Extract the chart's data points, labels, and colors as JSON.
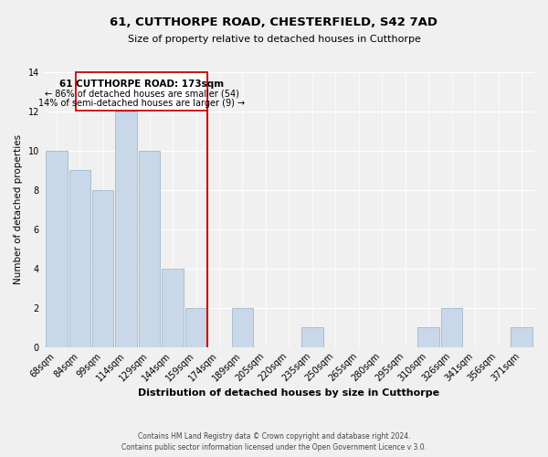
{
  "title": "61, CUTTHORPE ROAD, CHESTERFIELD, S42 7AD",
  "subtitle": "Size of property relative to detached houses in Cutthorpe",
  "xlabel": "Distribution of detached houses by size in Cutthorpe",
  "ylabel": "Number of detached properties",
  "bin_labels": [
    "68sqm",
    "84sqm",
    "99sqm",
    "114sqm",
    "129sqm",
    "144sqm",
    "159sqm",
    "174sqm",
    "189sqm",
    "205sqm",
    "220sqm",
    "235sqm",
    "250sqm",
    "265sqm",
    "280sqm",
    "295sqm",
    "310sqm",
    "326sqm",
    "341sqm",
    "356sqm",
    "371sqm"
  ],
  "bar_heights": [
    10,
    9,
    8,
    12,
    10,
    4,
    2,
    0,
    2,
    0,
    0,
    1,
    0,
    0,
    0,
    0,
    1,
    2,
    0,
    0,
    1
  ],
  "bar_color": "#c8d8e8",
  "bar_edge_color": "#a0b8cc",
  "subject_line_color": "#cc0000",
  "annotation_title": "61 CUTTHORPE ROAD: 173sqm",
  "annotation_line1": "← 86% of detached houses are smaller (54)",
  "annotation_line2": "14% of semi-detached houses are larger (9) →",
  "annotation_box_color": "#ffffff",
  "annotation_box_edge_color": "#cc0000",
  "ylim": [
    0,
    14
  ],
  "footer1": "Contains HM Land Registry data © Crown copyright and database right 2024.",
  "footer2": "Contains public sector information licensed under the Open Government Licence v 3.0.",
  "background_color": "#f0f0f0",
  "grid_color": "#ffffff",
  "title_fontsize": 9.5,
  "subtitle_fontsize": 8,
  "xlabel_fontsize": 8,
  "ylabel_fontsize": 7.5,
  "tick_fontsize": 7,
  "footer_fontsize": 5.5
}
